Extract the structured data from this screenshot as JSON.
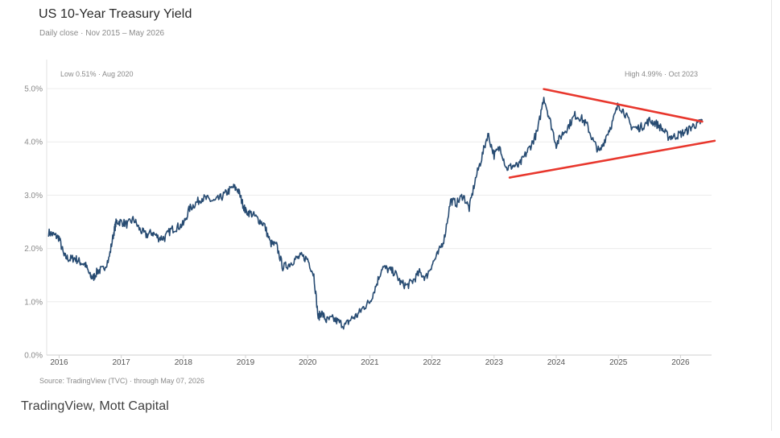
{
  "header": {
    "title": "US 10-Year Treasury Yield",
    "subtitle": "Daily close  ·  Nov 2015 – May 2026"
  },
  "footer": {
    "credit": "TradingView, Mott Capital"
  },
  "chart_data": {
    "type": "line",
    "title": "US 10-Year Treasury Yield",
    "subtitle": "Daily close  ·  Nov 2015 – May 2026",
    "xlabel": "",
    "ylabel": "",
    "xlim": [
      2015.8,
      2026.5
    ],
    "ylim": [
      0,
      5.0
    ],
    "grid": true,
    "y_ticks": [
      0,
      1,
      2,
      3,
      4,
      5
    ],
    "y_tick_labels": [
      "0.0%",
      "1.0%",
      "2.0%",
      "3.0%",
      "4.0%",
      "5.0%"
    ],
    "x_ticks": [
      2016,
      2017,
      2018,
      2019,
      2020,
      2021,
      2022,
      2023,
      2024,
      2025,
      2026
    ],
    "x_tick_labels": [
      "2016",
      "2017",
      "2018",
      "2019",
      "2020",
      "2021",
      "2022",
      "2023",
      "2024",
      "2025",
      "2026"
    ],
    "annotations": {
      "low": "Low 0.51%  ·  Aug 2020",
      "high": "High 4.99%  ·  Oct 2023",
      "source": "Source: TradingView (TVC)  ·  through May 07, 2026"
    },
    "colors": {
      "series": "#274b72",
      "trendline": "#e8372d",
      "grid": "#ececec"
    },
    "series": [
      {
        "x": [
          2015.83,
          2015.92,
          2016.0,
          2016.08,
          2016.17,
          2016.25,
          2016.33,
          2016.42,
          2016.5,
          2016.55,
          2016.62,
          2016.7,
          2016.8,
          2016.88,
          2016.92,
          2017.0,
          2017.1,
          2017.2,
          2017.3,
          2017.4,
          2017.5,
          2017.6,
          2017.7,
          2017.8,
          2017.9,
          2018.0,
          2018.1,
          2018.2,
          2018.3,
          2018.4,
          2018.5,
          2018.6,
          2018.7,
          2018.8,
          2018.88,
          2018.95,
          2019.0,
          2019.1,
          2019.2,
          2019.3,
          2019.4,
          2019.5,
          2019.6,
          2019.7,
          2019.8,
          2019.9,
          2020.0,
          2020.1,
          2020.17,
          2020.22,
          2020.3,
          2020.4,
          2020.5,
          2020.6,
          2020.7,
          2020.8,
          2020.9,
          2021.0,
          2021.1,
          2021.2,
          2021.3,
          2021.4,
          2021.5,
          2021.6,
          2021.7,
          2021.8,
          2021.9,
          2022.0,
          2022.1,
          2022.2,
          2022.3,
          2022.4,
          2022.5,
          2022.6,
          2022.7,
          2022.8,
          2022.9,
          2023.0,
          2023.1,
          2023.2,
          2023.3,
          2023.4,
          2023.5,
          2023.6,
          2023.7,
          2023.8,
          2023.9,
          2024.0,
          2024.1,
          2024.2,
          2024.3,
          2024.4,
          2024.5,
          2024.6,
          2024.7,
          2024.8,
          2024.9,
          2025.0,
          2025.1,
          2025.2,
          2025.3,
          2025.4,
          2025.5,
          2025.6,
          2025.7,
          2025.8,
          2025.9,
          2026.0,
          2026.1,
          2026.2,
          2026.3,
          2026.35
        ],
        "y": [
          2.3,
          2.25,
          2.2,
          1.85,
          1.8,
          1.82,
          1.75,
          1.7,
          1.48,
          1.45,
          1.58,
          1.6,
          1.8,
          2.3,
          2.5,
          2.5,
          2.45,
          2.55,
          2.35,
          2.25,
          2.3,
          2.2,
          2.2,
          2.35,
          2.4,
          2.45,
          2.75,
          2.85,
          2.95,
          2.92,
          2.88,
          2.95,
          3.05,
          3.15,
          3.1,
          2.85,
          2.7,
          2.65,
          2.55,
          2.45,
          2.1,
          2.05,
          1.65,
          1.7,
          1.8,
          1.85,
          1.8,
          1.5,
          0.7,
          0.8,
          0.65,
          0.68,
          0.62,
          0.55,
          0.68,
          0.75,
          0.9,
          1.0,
          1.3,
          1.65,
          1.6,
          1.55,
          1.35,
          1.3,
          1.4,
          1.55,
          1.45,
          1.7,
          1.9,
          2.2,
          2.9,
          2.85,
          3.0,
          2.75,
          3.3,
          3.7,
          4.15,
          3.75,
          3.9,
          3.5,
          3.55,
          3.55,
          3.75,
          3.95,
          4.2,
          4.85,
          4.4,
          3.95,
          4.15,
          4.3,
          4.5,
          4.45,
          4.3,
          4.0,
          3.8,
          4.1,
          4.35,
          4.7,
          4.55,
          4.3,
          4.25,
          4.3,
          4.4,
          4.35,
          4.25,
          4.1,
          4.1,
          4.15,
          4.2,
          4.3,
          4.35,
          4.4
        ]
      }
    ],
    "trendlines": [
      {
        "x": [
          2023.8,
          2026.35
        ],
        "y": [
          4.99,
          4.38
        ]
      },
      {
        "x": [
          2023.25,
          2026.55
        ],
        "y": [
          3.33,
          4.02
        ]
      }
    ]
  }
}
